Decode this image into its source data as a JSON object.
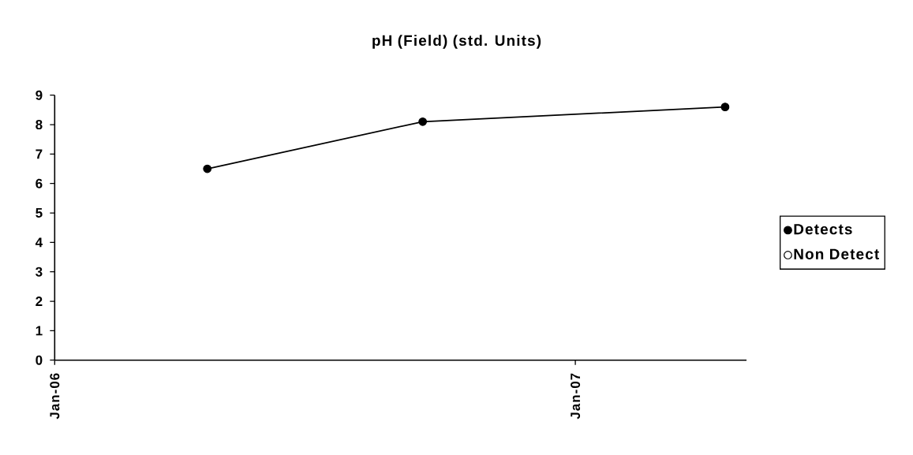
{
  "chart_data": {
    "type": "line",
    "title": "pH (Field) (std. Units)",
    "x": [
      "2006-04-18",
      "2006-09-16",
      "2007-04-16"
    ],
    "series": [
      {
        "name": "Detects",
        "color": "#000000",
        "values": [
          6.5,
          8.1,
          8.6
        ]
      },
      {
        "name": "Non Detect",
        "color": "#ffffff",
        "values": [
          null,
          null,
          null
        ]
      }
    ],
    "xlim": [
      "2006-01-01",
      "2007-05-01"
    ],
    "xticks": [
      {
        "value": "2006-01-01",
        "label": "Jan-06"
      },
      {
        "value": "2007-01-01",
        "label": "Jan-07"
      }
    ],
    "ylim": [
      0,
      9
    ],
    "yticks": [
      0,
      1,
      2,
      3,
      4,
      5,
      6,
      7,
      8,
      9
    ],
    "legend": "right",
    "marker": "circle",
    "line_style": "solid"
  }
}
